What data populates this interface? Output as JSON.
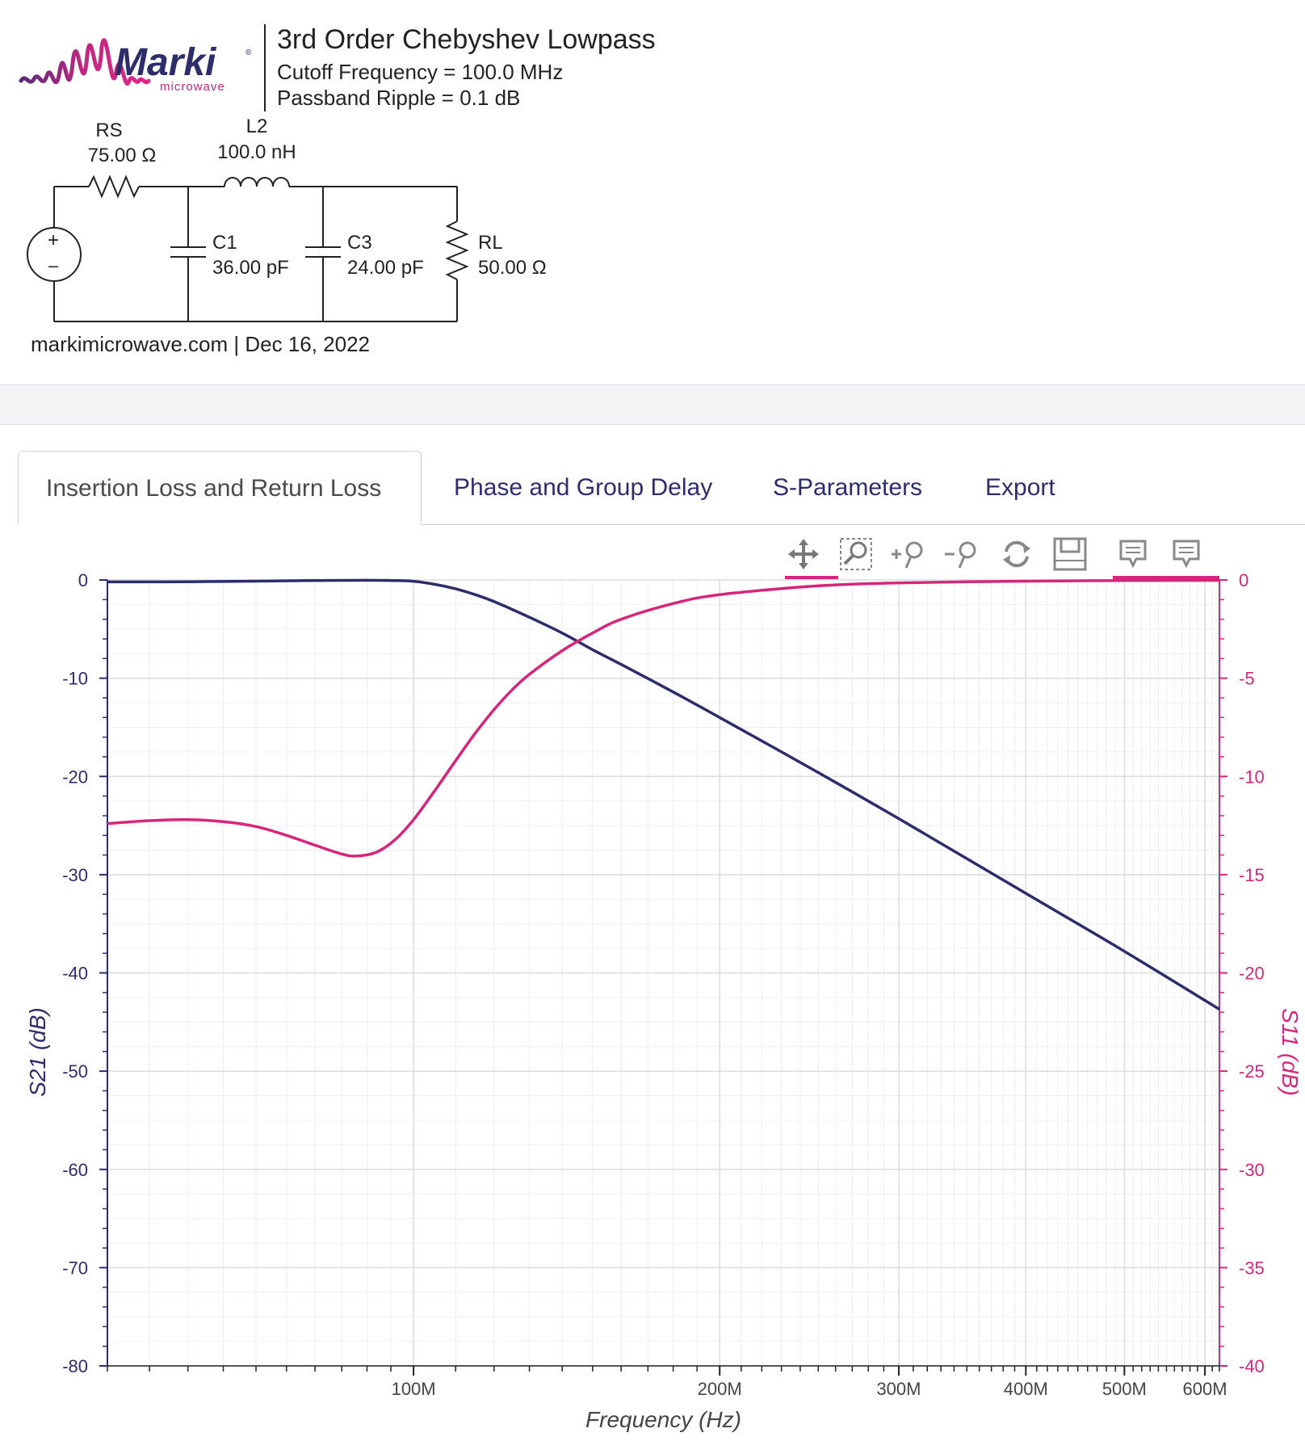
{
  "header": {
    "logo_name": "Marki",
    "logo_registered": "®",
    "logo_sub": "microwave",
    "title": "3rd Order Chebyshev Lowpass",
    "cutoff": "Cutoff Frequency = 100.0 MHz",
    "ripple": "Passband Ripple = 0.1 dB",
    "footer": "markimicrowave.com | Dec 16, 2022",
    "brand_color": "#d6267c",
    "brand_dark": "#2e2d6b"
  },
  "schematic": {
    "source_plus": "+",
    "source_minus": "–",
    "rs_name": "RS",
    "rs_value": "75.00 Ω",
    "l2_name": "L2",
    "l2_value": "100.0 nH",
    "c1_name": "C1",
    "c1_value": "36.00 pF",
    "c3_name": "C3",
    "c3_value": "24.00 pF",
    "rl_name": "RL",
    "rl_value": "50.00 Ω"
  },
  "tabs": [
    {
      "label": "Insertion Loss and Return Loss",
      "active": true
    },
    {
      "label": "Phase and Group Delay",
      "active": false
    },
    {
      "label": "S-Parameters",
      "active": false
    },
    {
      "label": "Export",
      "active": false
    }
  ],
  "toolbar": [
    "pan-icon",
    "box-zoom-icon",
    "zoom-in-icon",
    "zoom-out-icon",
    "reset-icon",
    "save-icon",
    "hover-icon",
    "hover-icon"
  ],
  "chart_data": {
    "type": "line",
    "xlabel": "Frequency (Hz)",
    "ylabel_left": "S21 (dB)",
    "ylabel_right": "S11 (dB)",
    "x_scale": "log",
    "xlim": [
      50000000,
      620000000
    ],
    "ylim_left": [
      -80,
      0
    ],
    "ylim_right": [
      -40,
      0
    ],
    "x_tick_labels": [
      {
        "value": 100000000,
        "label": "100M"
      },
      {
        "value": 200000000,
        "label": "200M"
      },
      {
        "value": 300000000,
        "label": "300M"
      },
      {
        "value": 400000000,
        "label": "400M"
      },
      {
        "value": 500000000,
        "label": "500M"
      },
      {
        "value": 600000000,
        "label": "600M"
      }
    ],
    "y_left_ticks": [
      "0",
      "-10",
      "-20",
      "-30",
      "-40",
      "-50",
      "-60",
      "-70",
      "-80"
    ],
    "y_right_ticks": [
      "0",
      "-5",
      "-10",
      "-15",
      "-20",
      "-25",
      "-30",
      "-35",
      "-40"
    ],
    "series": [
      {
        "name": "S21 (dB)",
        "axis": "left",
        "color": "#2e2d6b",
        "x": [
          50000000,
          60000000,
          70000000,
          80000000,
          90000000,
          95000000,
          100000000,
          105000000,
          110000000,
          115000000,
          120000000,
          130000000,
          140000000,
          150000000,
          160000000,
          180000000,
          200000000,
          250000000,
          300000000,
          400000000,
          500000000,
          620000000
        ],
        "y": [
          -0.2,
          -0.18,
          -0.12,
          -0.06,
          -0.03,
          -0.06,
          -0.13,
          -0.45,
          -0.9,
          -1.5,
          -2.2,
          -3.8,
          -5.4,
          -7.1,
          -8.6,
          -11.4,
          -14.0,
          -19.6,
          -24.3,
          -31.9,
          -37.8,
          -43.7
        ]
      },
      {
        "name": "S11 (dB)",
        "axis": "right",
        "color": "#d6267c",
        "x": [
          50000000,
          55000000,
          60000000,
          65000000,
          70000000,
          75000000,
          80000000,
          85000000,
          88000000,
          92000000,
          96000000,
          100000000,
          105000000,
          110000000,
          115000000,
          120000000,
          125000000,
          130000000,
          140000000,
          150000000,
          160000000,
          180000000,
          200000000,
          250000000,
          300000000,
          400000000,
          500000000,
          620000000
        ],
        "y": [
          -12.4,
          -12.25,
          -12.2,
          -12.3,
          -12.55,
          -13.0,
          -13.5,
          -13.95,
          -14.05,
          -13.85,
          -13.2,
          -12.2,
          -10.7,
          -9.2,
          -7.8,
          -6.6,
          -5.6,
          -4.8,
          -3.6,
          -2.7,
          -2.0,
          -1.2,
          -0.75,
          -0.3,
          -0.15,
          -0.06,
          -0.03,
          -0.02
        ]
      }
    ]
  }
}
